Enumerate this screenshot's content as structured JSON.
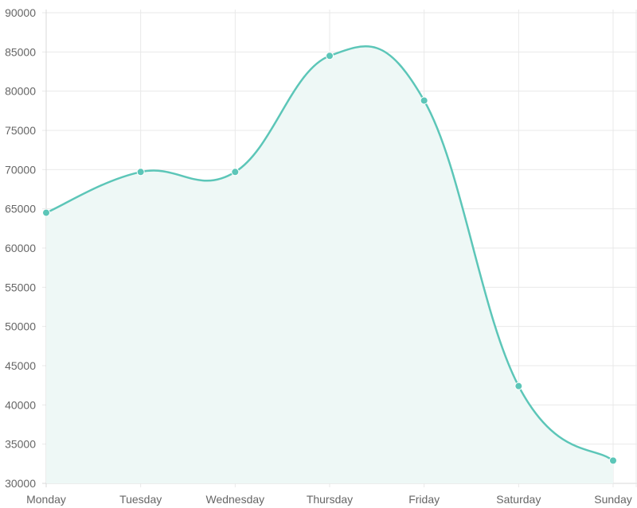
{
  "colors": {
    "line": "#5cc6b8",
    "fill": "#eef8f6",
    "point": "#5cc6b8",
    "grid": "#e9e9e9",
    "text": "#666666"
  },
  "chart_data": {
    "type": "area",
    "categories": [
      "Monday",
      "Tuesday",
      "Wednesday",
      "Thursday",
      "Friday",
      "Saturday",
      "Sunday"
    ],
    "values": [
      64500,
      69700,
      69700,
      84500,
      78800,
      42400,
      32900
    ],
    "ylim": [
      30000,
      90000
    ],
    "yticks": [
      "30000",
      "35000",
      "40000",
      "45000",
      "50000",
      "55000",
      "60000",
      "65000",
      "70000",
      "75000",
      "80000",
      "85000",
      "90000"
    ],
    "grid": true,
    "curve": "smooth",
    "markers": true,
    "legend": "none"
  }
}
